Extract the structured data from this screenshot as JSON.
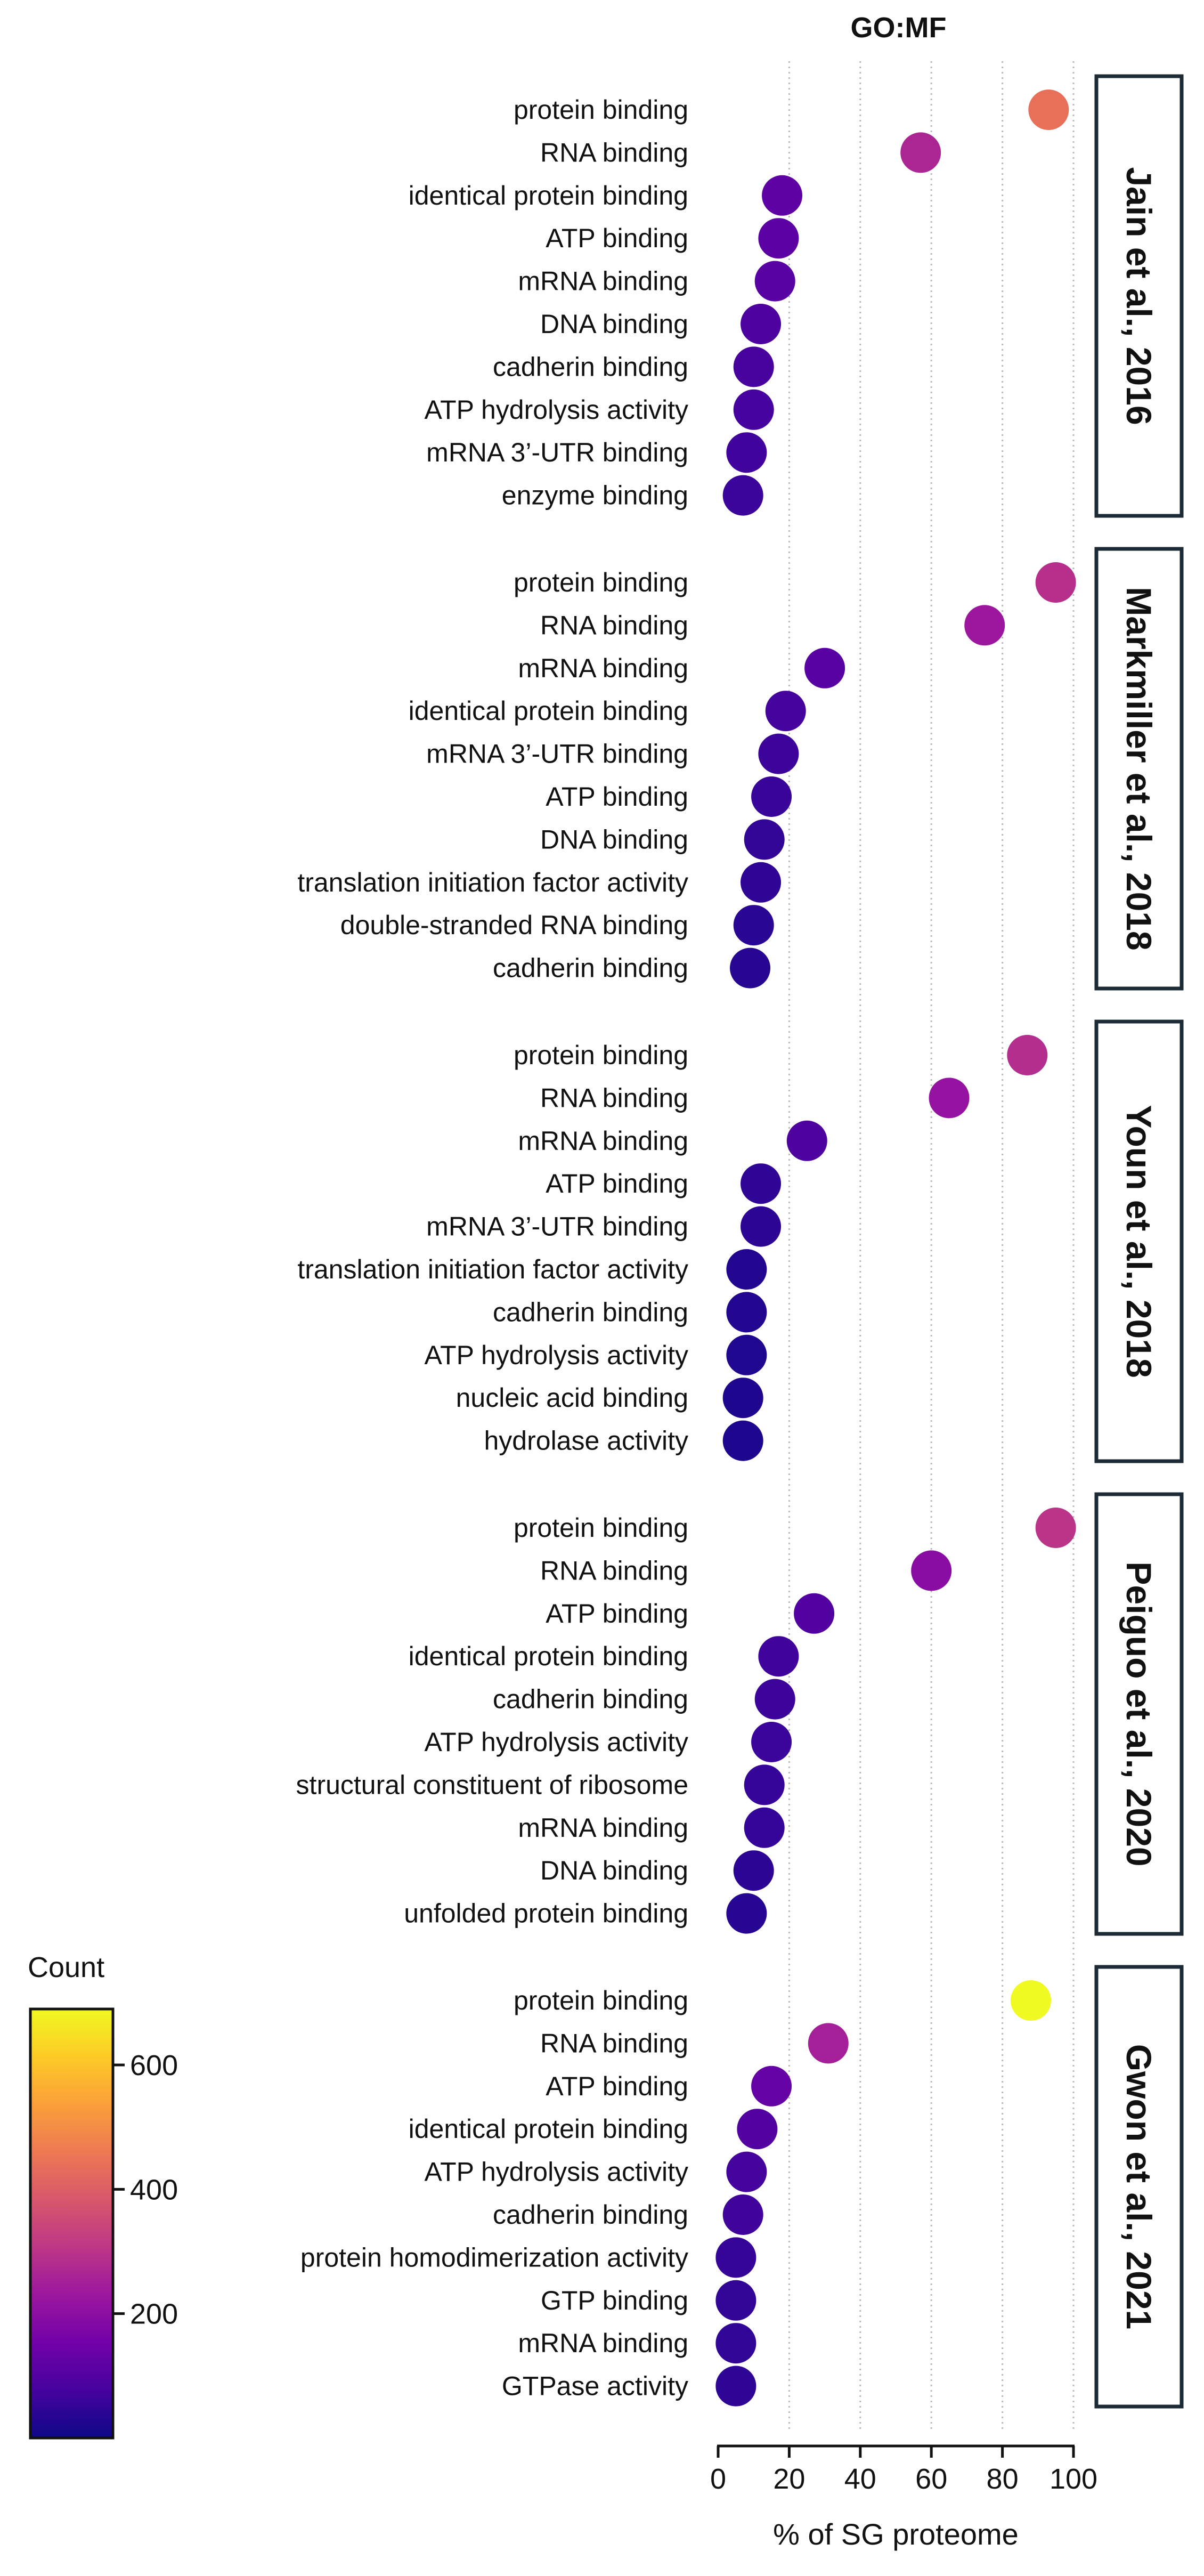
{
  "chart_data": {
    "type": "scatter",
    "title": "GO:MF",
    "xlabel": "% of SG proteome",
    "xlim": [
      0,
      100
    ],
    "xticks": [
      0,
      20,
      40,
      60,
      80,
      100
    ],
    "grid": "vertical dotted at 20, 40, 60, 80, 100",
    "size_legend": "none",
    "colorbar": {
      "title": "Count",
      "range": [
        0,
        690
      ],
      "ticks": [
        200,
        400,
        600
      ],
      "placement": "left",
      "colormap": [
        "#0d0887",
        "#46039f",
        "#7201a8",
        "#9c179e",
        "#bd3786",
        "#d8576b",
        "#ed7953",
        "#fb9f3a",
        "#fdca26",
        "#f0f921"
      ]
    },
    "panels": [
      {
        "study": "Jain et al., 2016",
        "points": [
          {
            "term": "protein binding",
            "x": 93,
            "count": 440
          },
          {
            "term": "RNA binding",
            "x": 57,
            "count": 265
          },
          {
            "term": "identical protein binding",
            "x": 18,
            "count": 120
          },
          {
            "term": "ATP binding",
            "x": 17,
            "count": 115
          },
          {
            "term": "mRNA binding",
            "x": 16,
            "count": 110
          },
          {
            "term": "DNA binding",
            "x": 12,
            "count": 90
          },
          {
            "term": "cadherin binding",
            "x": 10,
            "count": 80
          },
          {
            "term": "ATP hydrolysis activity",
            "x": 10,
            "count": 78
          },
          {
            "term": "mRNA 3’-UTR binding",
            "x": 8,
            "count": 70
          },
          {
            "term": "enzyme binding",
            "x": 7,
            "count": 62
          }
        ]
      },
      {
        "study": "Markmiller et al., 2018",
        "points": [
          {
            "term": "protein binding",
            "x": 95,
            "count": 290
          },
          {
            "term": "RNA binding",
            "x": 75,
            "count": 230
          },
          {
            "term": "mRNA binding",
            "x": 30,
            "count": 110
          },
          {
            "term": "identical protein binding",
            "x": 19,
            "count": 75
          },
          {
            "term": "mRNA 3’-UTR binding",
            "x": 17,
            "count": 65
          },
          {
            "term": "ATP binding",
            "x": 15,
            "count": 58
          },
          {
            "term": "DNA binding",
            "x": 13,
            "count": 50
          },
          {
            "term": "translation initiation factor activity",
            "x": 12,
            "count": 45
          },
          {
            "term": "double-stranded RNA binding",
            "x": 10,
            "count": 38
          },
          {
            "term": "cadherin binding",
            "x": 9,
            "count": 35
          }
        ]
      },
      {
        "study": "Youn et al., 2018",
        "points": [
          {
            "term": "protein binding",
            "x": 87,
            "count": 285
          },
          {
            "term": "RNA binding",
            "x": 65,
            "count": 215
          },
          {
            "term": "mRNA binding",
            "x": 25,
            "count": 90
          },
          {
            "term": "ATP binding",
            "x": 12,
            "count": 45
          },
          {
            "term": "mRNA 3’-UTR binding",
            "x": 12,
            "count": 43
          },
          {
            "term": "translation initiation factor activity",
            "x": 8,
            "count": 30
          },
          {
            "term": "cadherin binding",
            "x": 8,
            "count": 28
          },
          {
            "term": "ATP hydrolysis activity",
            "x": 8,
            "count": 27
          },
          {
            "term": "nucleic acid  binding",
            "x": 7,
            "count": 25
          },
          {
            "term": "hydrolase activity",
            "x": 7,
            "count": 24
          }
        ]
      },
      {
        "study": "Peiguo et al., 2020",
        "points": [
          {
            "term": "protein binding",
            "x": 95,
            "count": 300
          },
          {
            "term": "RNA binding",
            "x": 60,
            "count": 195
          },
          {
            "term": "ATP binding",
            "x": 27,
            "count": 100
          },
          {
            "term": "identical protein binding",
            "x": 17,
            "count": 68
          },
          {
            "term": "cadherin binding",
            "x": 16,
            "count": 64
          },
          {
            "term": "ATP hydrolysis activity",
            "x": 15,
            "count": 62
          },
          {
            "term": "structural constituent of ribosome",
            "x": 13,
            "count": 55
          },
          {
            "term": "mRNA binding",
            "x": 13,
            "count": 53
          },
          {
            "term": "DNA binding",
            "x": 10,
            "count": 42
          },
          {
            "term": "unfolded protein binding",
            "x": 8,
            "count": 34
          }
        ]
      },
      {
        "study": "Gwon et al., 2021",
        "points": [
          {
            "term": "protein binding",
            "x": 88,
            "count": 690
          },
          {
            "term": "RNA binding",
            "x": 31,
            "count": 250
          },
          {
            "term": "ATP binding",
            "x": 15,
            "count": 130
          },
          {
            "term": "identical protein binding",
            "x": 11,
            "count": 100
          },
          {
            "term": "ATP hydrolysis activity",
            "x": 8,
            "count": 75
          },
          {
            "term": "cadherin binding",
            "x": 7,
            "count": 68
          },
          {
            "term": "protein homodimerization activity",
            "x": 5,
            "count": 55
          },
          {
            "term": "GTP binding",
            "x": 5,
            "count": 50
          },
          {
            "term": "mRNA binding",
            "x": 5,
            "count": 48
          },
          {
            "term": "GTPase activity",
            "x": 5,
            "count": 45
          }
        ]
      }
    ]
  }
}
